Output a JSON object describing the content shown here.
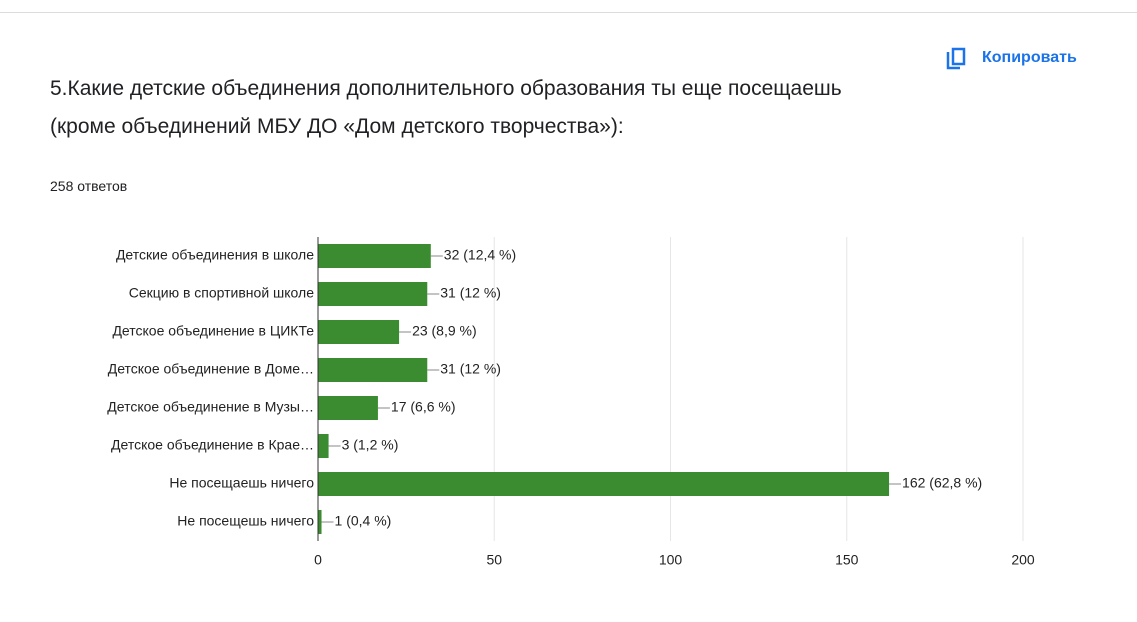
{
  "copy_button": "Копировать",
  "chart_data": {
    "type": "bar",
    "orientation": "horizontal",
    "title": "5.Какие детские объединения дополнительного образования ты еще посещаешь (кроме объединений МБУ ДО «Дом детского творчества»):",
    "subtitle": "258 ответов",
    "categories": [
      "Детские объединения в школе",
      "Секцию в спортивной школе",
      "Детское объединение в ЦИКТе",
      "Детское объединение в Доме…",
      "Детское объединение в Музы…",
      "Детское объединение в Крае…",
      "Не посещаешь ничего",
      "Не посещешь ничего"
    ],
    "values": [
      32,
      31,
      23,
      31,
      17,
      3,
      162,
      1
    ],
    "value_labels": [
      "32 (12,4 %)",
      "31 (12 %)",
      "23 (8,9 %)",
      "31 (12 %)",
      "17 (6,6 %)",
      "3 (1,2 %)",
      "162 (62,8 %)",
      "1 (0,4 %)"
    ],
    "color": "#3b8b30",
    "xlim": [
      0,
      200
    ],
    "xticks": [
      0,
      50,
      100,
      150,
      200
    ],
    "grid": true
  }
}
